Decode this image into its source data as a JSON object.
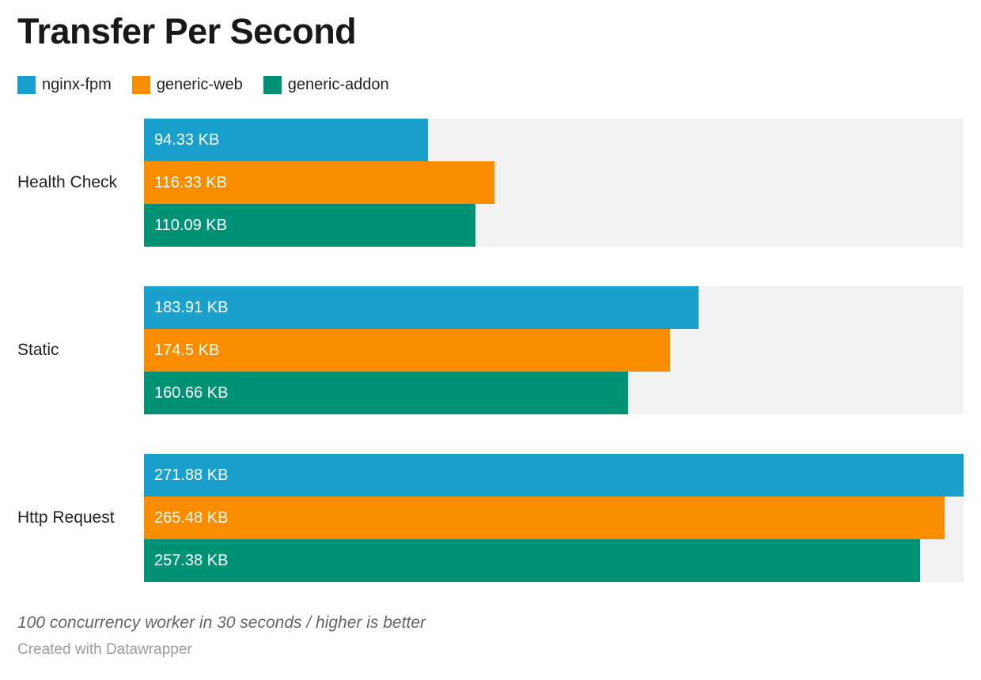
{
  "title": "Transfer Per Second",
  "footer": {
    "note": "100 concurrency worker in 30 seconds / higher is better",
    "attribution": "Created with Datawrapper"
  },
  "colors": {
    "track": "#f2f2f2",
    "title_text": "#181818",
    "category_text": "#222222",
    "bar_label_text": "#ffffff",
    "note_text": "#646464",
    "attribution_text": "#9b9b9b"
  },
  "chart_data": {
    "type": "bar",
    "orientation": "horizontal",
    "title": "Transfer Per Second",
    "unit": "KB",
    "xlim": [
      0,
      271.88
    ],
    "grid": false,
    "legend_position": "top",
    "categories": [
      "Health Check",
      "Static",
      "Http Request"
    ],
    "series": [
      {
        "name": "nginx-fpm",
        "color": "#1aa0cd",
        "values": [
          94.33,
          183.91,
          271.88
        ],
        "labels": [
          "94.33 KB",
          "183.91 KB",
          "271.88 KB"
        ]
      },
      {
        "name": "generic-web",
        "color": "#fa8c00",
        "values": [
          116.33,
          174.5,
          265.48
        ],
        "labels": [
          "116.33 KB",
          "174.5 KB",
          "265.48 KB"
        ]
      },
      {
        "name": "generic-addon",
        "color": "#009275",
        "values": [
          110.09,
          160.66,
          257.38
        ],
        "labels": [
          "110.09 KB",
          "160.66 KB",
          "257.38 KB"
        ]
      }
    ]
  }
}
